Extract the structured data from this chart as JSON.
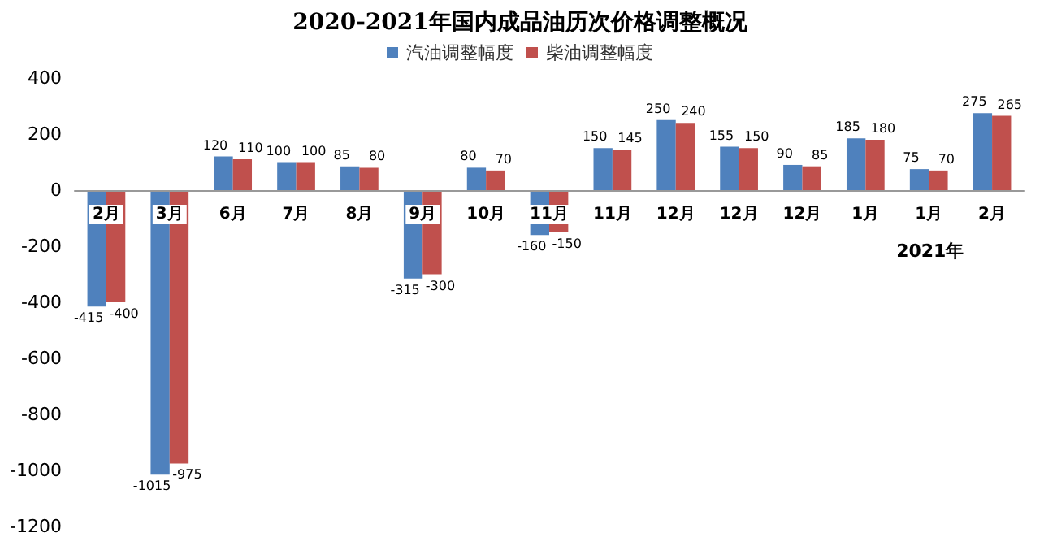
{
  "chart_data": {
    "type": "bar",
    "title": "2020-2021年国内成品油历次价格调整概况",
    "categories": [
      "2月",
      "3月",
      "6月",
      "7月",
      "8月",
      "9月",
      "10月",
      "11月",
      "11月",
      "12月",
      "12月",
      "12月",
      "1月",
      "1月",
      "2月"
    ],
    "series": [
      {
        "name": "汽油调整幅度",
        "color": "#4f81bd",
        "values": [
          -415,
          -1015,
          120,
          100,
          85,
          -315,
          80,
          -160,
          150,
          250,
          155,
          90,
          185,
          75,
          275
        ]
      },
      {
        "name": "柴油调整幅度",
        "color": "#c0504d",
        "values": [
          -400,
          -975,
          110,
          100,
          80,
          -300,
          70,
          -150,
          145,
          240,
          150,
          85,
          180,
          70,
          265
        ]
      }
    ],
    "ylim": [
      -1200,
      400
    ],
    "yticks": [
      -1200,
      -1000,
      -800,
      -600,
      -400,
      -200,
      0,
      200,
      400
    ],
    "data_labels": true,
    "legend": "top",
    "grid": false,
    "annotations": [
      "2021年"
    ]
  }
}
